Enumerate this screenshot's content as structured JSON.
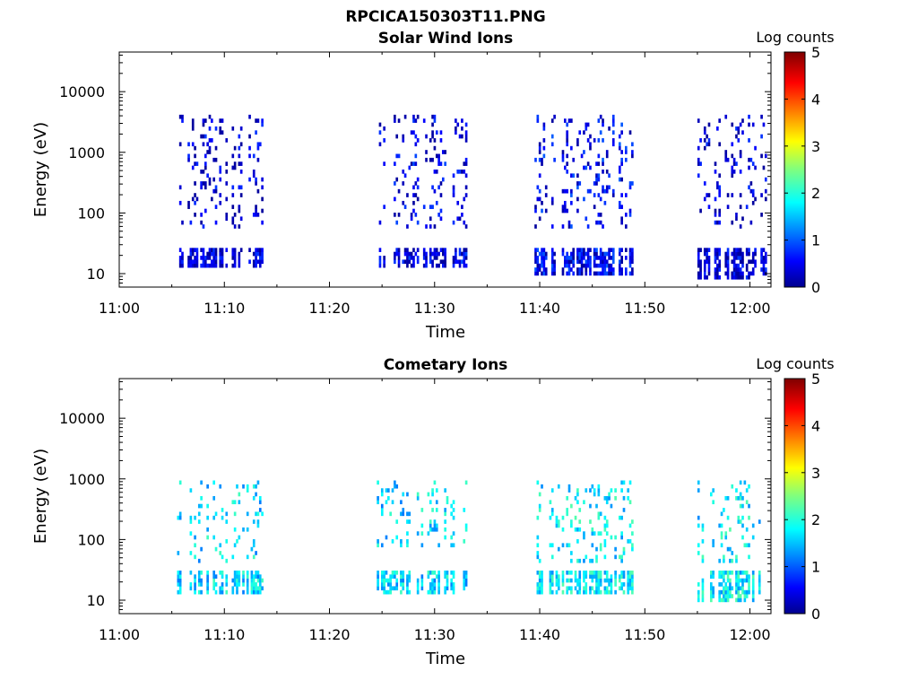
{
  "page": {
    "title": "RPCICA150303T11.PNG"
  },
  "chart_data": [
    {
      "type": "heatmap",
      "title": "Solar Wind Ions",
      "xlabel": "Time",
      "ylabel": "Energy (eV)",
      "x_ticks": [
        "11:00",
        "11:10",
        "11:20",
        "11:30",
        "11:40",
        "11:50",
        "12:00"
      ],
      "y_ticks": [
        "10",
        "100",
        "1000",
        "10000"
      ],
      "y_scale": "log",
      "ylim_eV": [
        6,
        45000
      ],
      "xlim_minutes_after_11_00": [
        0,
        62
      ],
      "colorbar": {
        "label": "Log counts",
        "ticks": [
          "0",
          "1",
          "2",
          "3",
          "4",
          "5"
        ],
        "range": [
          0,
          5
        ],
        "colormap": "jet"
      },
      "clusters": [
        {
          "start": "11:05.5",
          "end": "11:13.5",
          "low_band_eV": [
            12,
            28
          ],
          "upper_eV": [
            60,
            4000
          ],
          "level": 0.4
        },
        {
          "start": "11:24.5",
          "end": "11:33.0",
          "low_band_eV": [
            12,
            28
          ],
          "upper_eV": [
            60,
            4000
          ],
          "level": 0.5
        },
        {
          "start": "11:39.5",
          "end": "11:49.0",
          "low_band_eV": [
            10,
            28
          ],
          "upper_eV": [
            60,
            4000
          ],
          "level": 0.6
        },
        {
          "start": "11:55.0",
          "end": "12:01.5",
          "low_band_eV": [
            8,
            28
          ],
          "upper_eV": [
            60,
            4000
          ],
          "level": 0.4
        }
      ]
    },
    {
      "type": "heatmap",
      "title": "Cometary Ions",
      "xlabel": "Time",
      "ylabel": "Energy (eV)",
      "x_ticks": [
        "11:00",
        "11:10",
        "11:20",
        "11:30",
        "11:40",
        "11:50",
        "12:00"
      ],
      "y_ticks": [
        "10",
        "100",
        "1000",
        "10000"
      ],
      "y_scale": "log",
      "ylim_eV": [
        6,
        45000
      ],
      "xlim_minutes_after_11_00": [
        0,
        62
      ],
      "colorbar": {
        "label": "Log counts",
        "ticks": [
          "0",
          "1",
          "2",
          "3",
          "4",
          "5"
        ],
        "range": [
          0,
          5
        ],
        "colormap": "jet"
      },
      "clusters": [
        {
          "start": "11:05.5",
          "end": "11:13.5",
          "low_band_eV": [
            12,
            30
          ],
          "upper_eV": [
            40,
            1000
          ],
          "level": 1.7
        },
        {
          "start": "11:24.5",
          "end": "11:33.0",
          "low_band_eV": [
            12,
            30
          ],
          "upper_eV": [
            80,
            900
          ],
          "level": 1.7
        },
        {
          "start": "11:39.5",
          "end": "11:49.0",
          "low_band_eV": [
            12,
            30
          ],
          "upper_eV": [
            40,
            1000
          ],
          "level": 1.8
        },
        {
          "start": "11:55.0",
          "end": "12:01.5",
          "low_band_eV": [
            10,
            30
          ],
          "upper_eV": [
            40,
            900
          ],
          "level": 1.8
        }
      ]
    }
  ]
}
